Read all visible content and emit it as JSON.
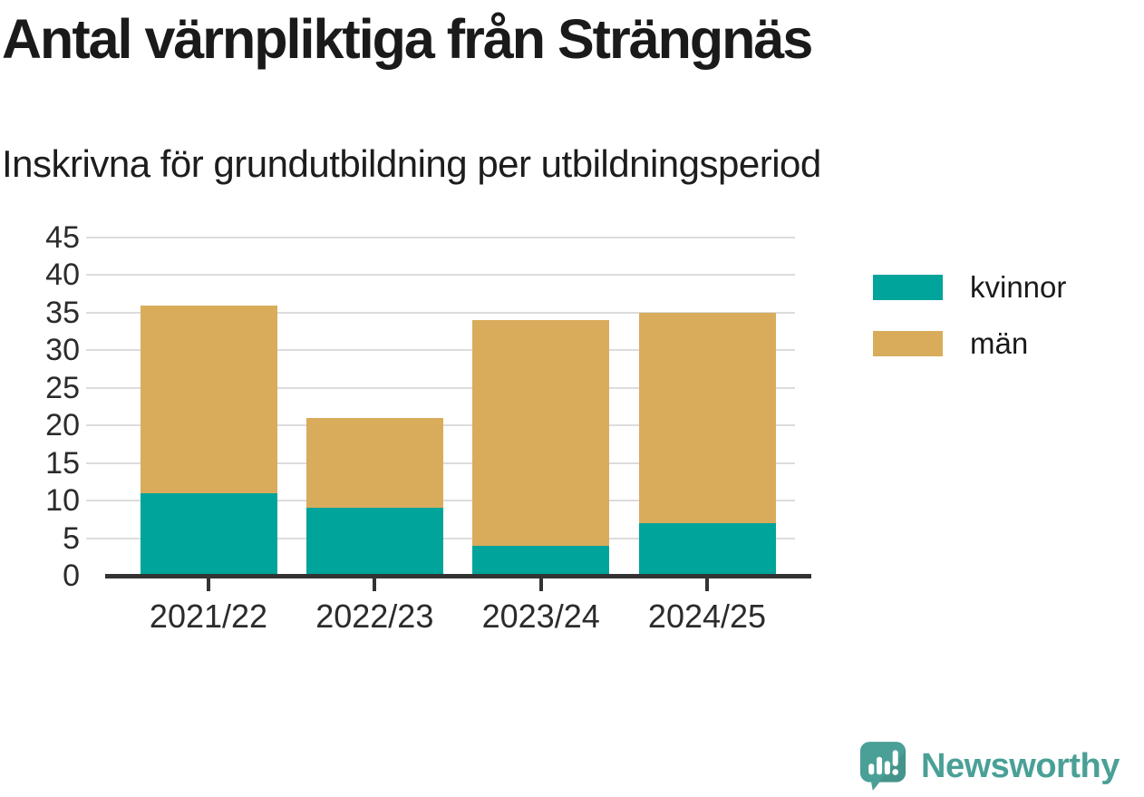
{
  "header": {
    "title": "Antal värnpliktiga från Strängnäs",
    "subtitle": "Inskrivna för grundutbildning per utbildningsperiod"
  },
  "chart_data": {
    "type": "bar",
    "stacked": true,
    "title": "Antal värnpliktiga från Strängnäs",
    "subtitle": "Inskrivna för grundutbildning per utbildningsperiod",
    "categories": [
      "2021/22",
      "2022/23",
      "2023/24",
      "2024/25"
    ],
    "series": [
      {
        "name": "kvinnor",
        "color": "#00a49a",
        "values": [
          11,
          9,
          4,
          7
        ]
      },
      {
        "name": "män",
        "color": "#d9ac5c",
        "values": [
          25,
          12,
          30,
          28
        ]
      }
    ],
    "stack_totals": [
      36,
      21,
      34,
      35
    ],
    "ylim": [
      0,
      45
    ],
    "ytick_step": 5,
    "ytick_labels": [
      "0",
      "5",
      "10",
      "15",
      "20",
      "25",
      "30",
      "35",
      "40",
      "45"
    ],
    "grid": true,
    "legend_position": "right",
    "xlabel": "",
    "ylabel": ""
  },
  "branding": {
    "name": "Newsworthy",
    "icon": "bar-chart-speech-bubble-icon",
    "icon_color": "#4aa096",
    "text_color": "#4aa096"
  },
  "colors": {
    "background": "#ffffff",
    "gridline": "#dcdcdc",
    "axis": "#333333",
    "kvinnor": "#00a49a",
    "man": "#d9ac5c"
  }
}
